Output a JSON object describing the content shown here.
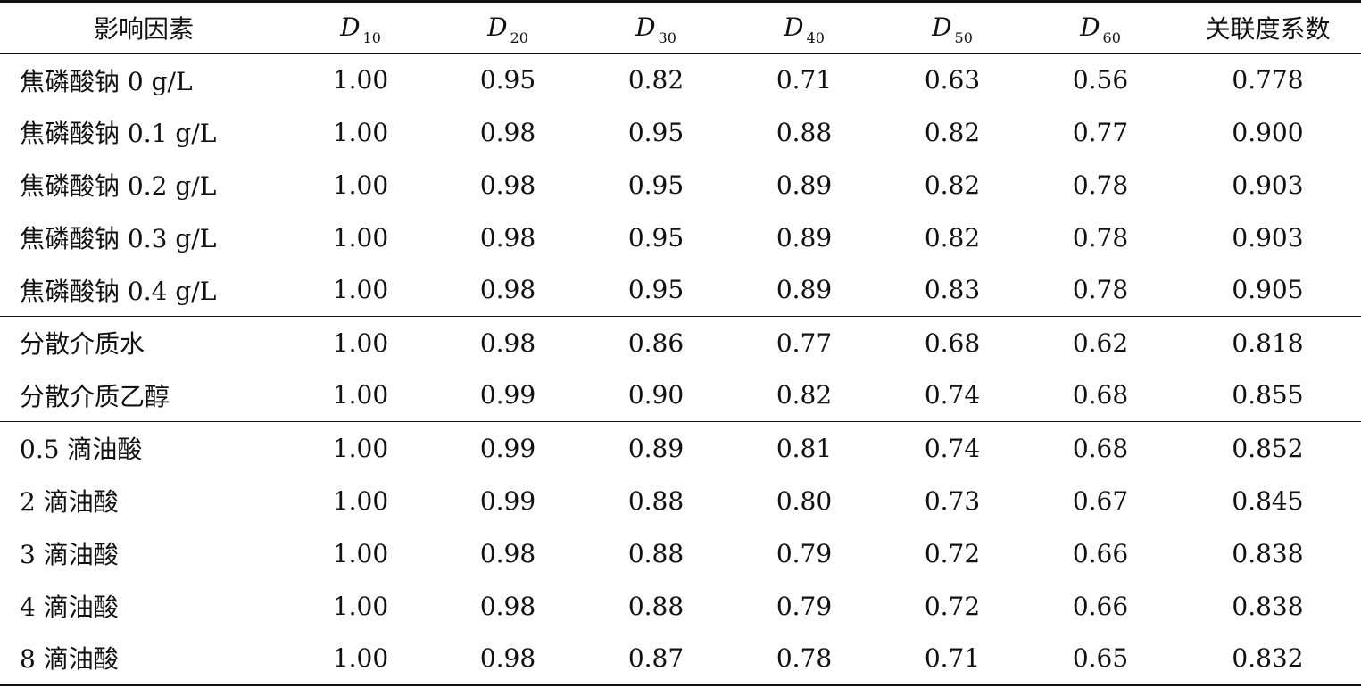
{
  "table": {
    "header": {
      "factor": "影响因素",
      "d_symbol": "D",
      "d_subscripts": [
        "10",
        "20",
        "30",
        "40",
        "50",
        "60"
      ],
      "coef": "关联度系数"
    },
    "rows": [
      {
        "label": "焦磷酸钠 0 g/L",
        "values": [
          "1.00",
          "0.95",
          "0.82",
          "0.71",
          "0.63",
          "0.56"
        ],
        "coef": "0.778"
      },
      {
        "label": "焦磷酸钠 0.1 g/L",
        "values": [
          "1.00",
          "0.98",
          "0.95",
          "0.88",
          "0.82",
          "0.77"
        ],
        "coef": "0.900"
      },
      {
        "label": "焦磷酸钠 0.2 g/L",
        "values": [
          "1.00",
          "0.98",
          "0.95",
          "0.89",
          "0.82",
          "0.78"
        ],
        "coef": "0.903"
      },
      {
        "label": "焦磷酸钠 0.3 g/L",
        "values": [
          "1.00",
          "0.98",
          "0.95",
          "0.89",
          "0.82",
          "0.78"
        ],
        "coef": "0.903"
      },
      {
        "label": "焦磷酸钠 0.4 g/L",
        "values": [
          "1.00",
          "0.98",
          "0.95",
          "0.89",
          "0.83",
          "0.78"
        ],
        "coef": "0.905"
      },
      {
        "label": "分散介质水",
        "values": [
          "1.00",
          "0.98",
          "0.86",
          "0.77",
          "0.68",
          "0.62"
        ],
        "coef": "0.818"
      },
      {
        "label": "分散介质乙醇",
        "values": [
          "1.00",
          "0.99",
          "0.90",
          "0.82",
          "0.74",
          "0.68"
        ],
        "coef": "0.855"
      },
      {
        "label": "0.5 滴油酸",
        "values": [
          "1.00",
          "0.99",
          "0.89",
          "0.81",
          "0.74",
          "0.68"
        ],
        "coef": "0.852"
      },
      {
        "label": "2 滴油酸",
        "values": [
          "1.00",
          "0.99",
          "0.88",
          "0.80",
          "0.73",
          "0.67"
        ],
        "coef": "0.845"
      },
      {
        "label": "3 滴油酸",
        "values": [
          "1.00",
          "0.98",
          "0.88",
          "0.79",
          "0.72",
          "0.66"
        ],
        "coef": "0.838"
      },
      {
        "label": "4 滴油酸",
        "values": [
          "1.00",
          "0.98",
          "0.88",
          "0.79",
          "0.72",
          "0.66"
        ],
        "coef": "0.838"
      },
      {
        "label": "8 滴油酸",
        "values": [
          "1.00",
          "0.98",
          "0.87",
          "0.78",
          "0.71",
          "0.65"
        ],
        "coef": "0.832"
      }
    ]
  }
}
